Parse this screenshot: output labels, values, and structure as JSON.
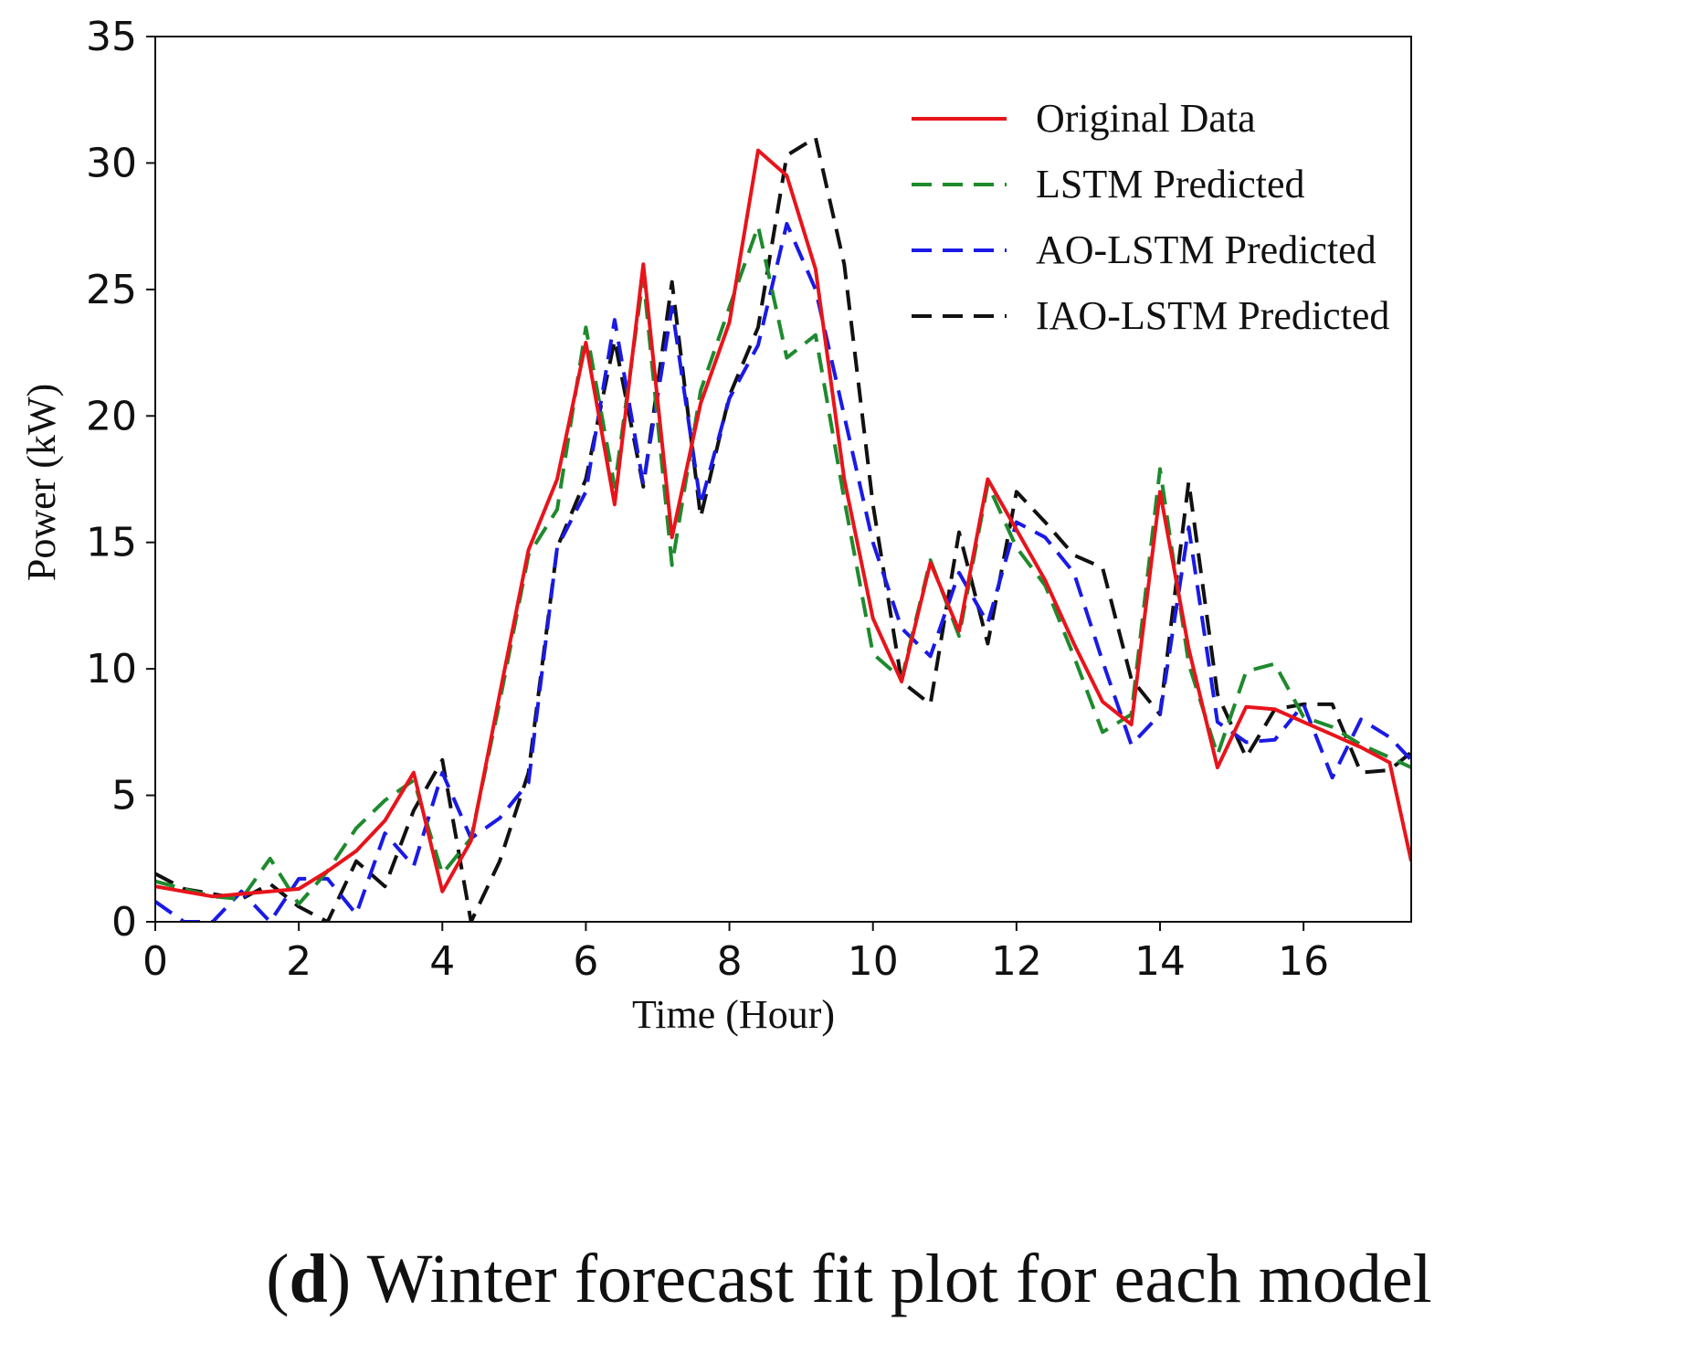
{
  "caption": {
    "letter": "d",
    "text": "Winter forecast fit plot for each model"
  },
  "chart_data": {
    "type": "line",
    "title": "",
    "xlabel": "Time (Hour)",
    "ylabel": "Power (kW)",
    "xlim": [
      0,
      17.5
    ],
    "ylim": [
      0,
      35
    ],
    "xticks": [
      0,
      2,
      4,
      6,
      8,
      10,
      12,
      14,
      16
    ],
    "yticks": [
      0,
      5,
      10,
      15,
      20,
      25,
      30,
      35
    ],
    "grid": false,
    "legend_position": "top-right",
    "x": [
      0,
      0.4,
      0.8,
      1.2,
      1.6,
      2.0,
      2.4,
      2.8,
      3.2,
      3.6,
      4.0,
      4.4,
      4.8,
      5.2,
      5.6,
      6.0,
      6.4,
      6.8,
      7.2,
      7.6,
      8.0,
      8.4,
      8.8,
      9.2,
      9.6,
      10.0,
      10.4,
      10.8,
      11.2,
      11.6,
      12.0,
      12.4,
      12.8,
      13.2,
      13.6,
      14.0,
      14.4,
      14.8,
      15.2,
      15.6,
      16.0,
      16.4,
      16.8,
      17.2,
      17.5
    ],
    "series": [
      {
        "name": "Original Data",
        "color": "#e8141b",
        "dash": "solid",
        "values": [
          1.4,
          1.2,
          1.0,
          1.1,
          1.2,
          1.3,
          2.0,
          2.8,
          4.0,
          5.9,
          1.2,
          3.2,
          9.0,
          14.7,
          17.5,
          22.9,
          16.5,
          26.0,
          15.2,
          20.5,
          23.7,
          30.5,
          29.5,
          25.8,
          17.5,
          12.0,
          9.5,
          14.2,
          11.5,
          17.5,
          15.5,
          13.5,
          11.0,
          8.7,
          7.8,
          17.0,
          10.8,
          6.1,
          8.5,
          8.4,
          7.9,
          7.4,
          6.9,
          6.3,
          2.4
        ]
      },
      {
        "name": "LSTM Predicted",
        "color": "#1e8a2e",
        "dash": "dashed",
        "values": [
          1.6,
          1.3,
          1.0,
          0.9,
          2.5,
          0.7,
          2.0,
          3.7,
          4.8,
          5.6,
          1.9,
          3.3,
          8.7,
          14.5,
          16.3,
          23.5,
          17.2,
          25.5,
          14.1,
          21.0,
          24.3,
          27.5,
          22.3,
          23.2,
          16.7,
          10.6,
          9.6,
          14.3,
          11.3,
          17.3,
          14.8,
          13.3,
          10.5,
          7.5,
          8.2,
          17.9,
          10.2,
          6.6,
          9.9,
          10.2,
          8.1,
          7.7,
          7.0,
          6.5,
          6.1
        ]
      },
      {
        "name": "AO-LSTM Predicted",
        "color": "#1a1ae6",
        "dash": "dashed",
        "values": [
          0.8,
          0.0,
          0.0,
          1.2,
          0.0,
          1.7,
          1.7,
          0.3,
          3.5,
          2.2,
          5.9,
          3.3,
          4.1,
          5.5,
          14.8,
          17.0,
          23.8,
          17.3,
          24.3,
          16.5,
          20.7,
          22.8,
          27.6,
          25.0,
          20.0,
          15.0,
          11.6,
          10.5,
          13.8,
          11.8,
          15.8,
          15.2,
          13.8,
          10.3,
          7.0,
          8.2,
          15.6,
          7.9,
          7.1,
          7.2,
          8.6,
          5.7,
          8.0,
          7.3,
          6.4
        ]
      },
      {
        "name": "IAO-LSTM Predicted",
        "color": "#111111",
        "dash": "dashed",
        "values": [
          1.9,
          1.3,
          1.1,
          0.9,
          1.5,
          0.6,
          0.0,
          2.4,
          1.4,
          4.4,
          6.4,
          0.0,
          2.4,
          5.9,
          14.8,
          17.5,
          23.0,
          17.2,
          25.3,
          16.0,
          20.8,
          23.5,
          30.3,
          31.0,
          26.0,
          16.5,
          9.5,
          8.6,
          15.4,
          11.0,
          17.0,
          15.8,
          14.5,
          14.0,
          9.6,
          8.2,
          17.4,
          9.0,
          6.5,
          8.4,
          8.6,
          8.6,
          5.9,
          6.0,
          6.7
        ]
      }
    ]
  }
}
